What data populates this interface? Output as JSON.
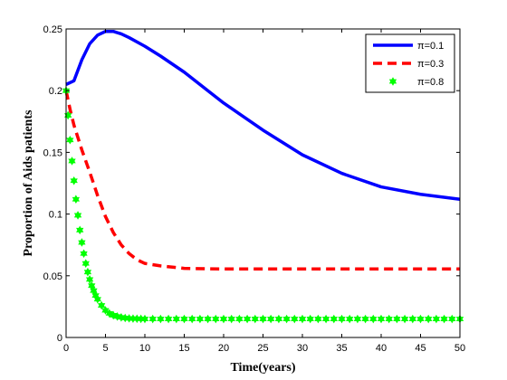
{
  "chart_data": {
    "type": "line",
    "title": "",
    "xlabel": "Time(years)",
    "ylabel": "Proportion of Aids patients",
    "xlim": [
      0,
      50
    ],
    "ylim": [
      0,
      0.25
    ],
    "xticks": [
      "0",
      "5",
      "10",
      "15",
      "20",
      "25",
      "30",
      "35",
      "40",
      "45",
      "50"
    ],
    "yticks": [
      "0",
      "0.05",
      "0.1",
      "0.15",
      "0.2",
      "0.25"
    ],
    "grid": false,
    "legend_position": "top-right",
    "series": [
      {
        "name": "π=0.1",
        "color": "#0000ff",
        "style": "solid",
        "x": [
          0,
          1,
          2,
          3,
          4,
          5,
          6,
          7,
          8,
          10,
          12,
          15,
          18,
          20,
          25,
          30,
          35,
          40,
          45,
          50
        ],
        "y": [
          0.205,
          0.208,
          0.225,
          0.238,
          0.245,
          0.248,
          0.248,
          0.246,
          0.243,
          0.236,
          0.228,
          0.215,
          0.2,
          0.19,
          0.168,
          0.148,
          0.133,
          0.122,
          0.116,
          0.112
        ]
      },
      {
        "name": "π=0.3",
        "color": "#ff0000",
        "style": "dashed",
        "x": [
          0,
          0.5,
          1,
          2,
          3,
          4,
          5,
          6,
          7,
          8,
          9,
          10,
          12,
          15,
          20,
          25,
          30,
          40,
          50
        ],
        "y": [
          0.2,
          0.185,
          0.172,
          0.152,
          0.134,
          0.115,
          0.098,
          0.085,
          0.075,
          0.068,
          0.063,
          0.06,
          0.058,
          0.056,
          0.0555,
          0.0555,
          0.0555,
          0.0555,
          0.0555
        ]
      },
      {
        "name": "π=0.8",
        "color": "#00ff00",
        "style": "markers",
        "marker": "hexagram",
        "x": [
          0,
          0.25,
          0.5,
          0.75,
          1,
          1.25,
          1.5,
          1.75,
          2,
          2.25,
          2.5,
          2.75,
          3,
          3.25,
          3.5,
          3.75,
          4,
          4.5,
          5,
          5.5,
          6,
          6.5,
          7,
          7.5,
          8,
          8.5,
          9,
          9.5,
          10,
          11,
          12,
          13,
          14,
          15,
          16,
          17,
          18,
          19,
          20,
          21,
          22,
          23,
          24,
          25,
          26,
          27,
          28,
          29,
          30,
          31,
          32,
          33,
          34,
          35,
          36,
          37,
          38,
          39,
          40,
          41,
          42,
          43,
          44,
          45,
          46,
          47,
          48,
          49,
          50
        ],
        "y": [
          0.2,
          0.18,
          0.16,
          0.143,
          0.127,
          0.112,
          0.099,
          0.087,
          0.077,
          0.068,
          0.06,
          0.053,
          0.047,
          0.042,
          0.038,
          0.034,
          0.031,
          0.026,
          0.022,
          0.0195,
          0.018,
          0.017,
          0.0163,
          0.0158,
          0.0155,
          0.0153,
          0.0152,
          0.0151,
          0.015,
          0.015,
          0.015,
          0.015,
          0.015,
          0.015,
          0.015,
          0.015,
          0.015,
          0.015,
          0.015,
          0.015,
          0.015,
          0.015,
          0.015,
          0.015,
          0.015,
          0.015,
          0.015,
          0.015,
          0.015,
          0.015,
          0.015,
          0.015,
          0.015,
          0.015,
          0.015,
          0.015,
          0.015,
          0.015,
          0.015,
          0.015,
          0.015,
          0.015,
          0.015,
          0.015,
          0.015,
          0.015,
          0.015,
          0.015,
          0.015
        ]
      }
    ]
  }
}
